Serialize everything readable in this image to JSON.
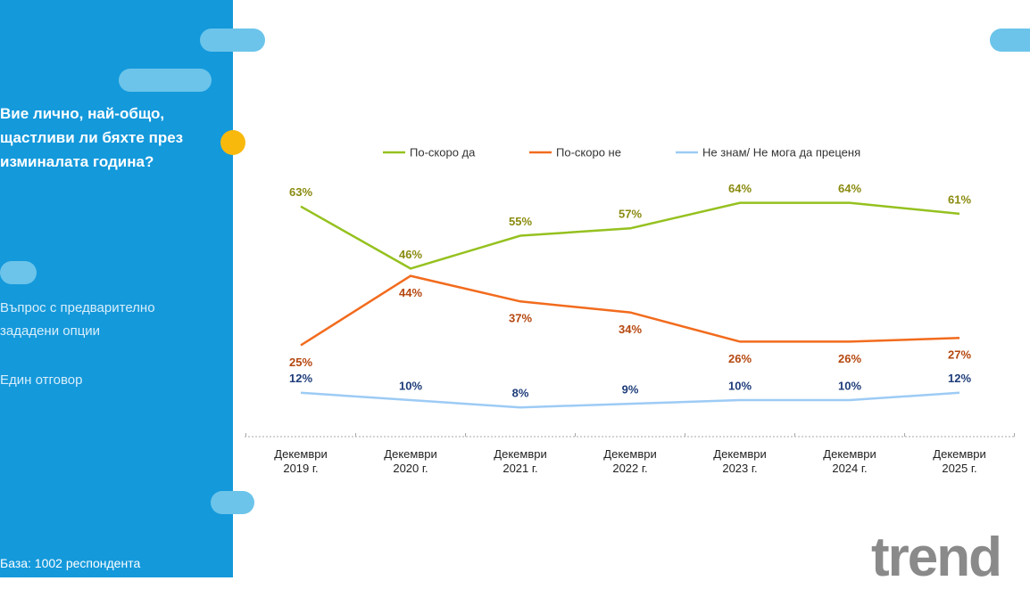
{
  "sidebar": {
    "question": "Вие лично, най-общо, щастливи ли бяхте през изминалата година?",
    "notes": [
      "Въпрос с предварително зададени опции",
      "Един отговор"
    ],
    "base": "База:  1002 респондента"
  },
  "logo": "trend",
  "chart_data": {
    "type": "line",
    "categories": [
      "Декември 2019 г.",
      "Декември 2020 г.",
      "Декември 2021 г.",
      "Декември 2022 г.",
      "Декември 2023 г.",
      "Декември 2024 г.",
      "Декември 2025 г."
    ],
    "ylim": [
      0,
      70
    ],
    "legend": "top",
    "series": [
      {
        "name": "По-скоро да",
        "color": "#95c11f",
        "label_color": "#8a8a10",
        "label_position": "above",
        "values": [
          63,
          46,
          55,
          57,
          64,
          64,
          61
        ],
        "value_labels": [
          "63%",
          "46%",
          "55%",
          "57%",
          "64%",
          "64%",
          "61%"
        ]
      },
      {
        "name": "По-скоро не",
        "color": "#f26b1d",
        "label_color": "#b5470f",
        "label_position": "below",
        "values": [
          25,
          44,
          37,
          34,
          26,
          26,
          27
        ],
        "value_labels": [
          "25%",
          "44%",
          "37%",
          "34%",
          "26%",
          "26%",
          "27%"
        ]
      },
      {
        "name": "Не знам/ Не мога да преценя",
        "color": "#9dcbf5",
        "label_color": "#1f3d7a",
        "label_position": "above",
        "values": [
          12,
          10,
          8,
          9,
          10,
          10,
          12
        ],
        "value_labels": [
          "12%",
          "10%",
          "8%",
          "9%",
          "10%",
          "10%",
          "12%"
        ]
      }
    ]
  }
}
